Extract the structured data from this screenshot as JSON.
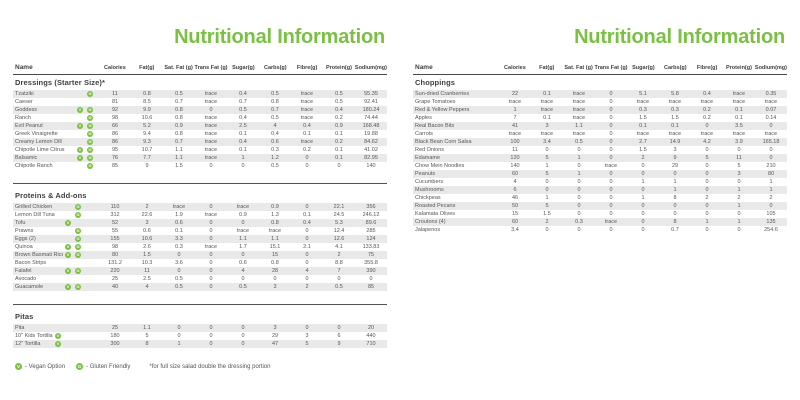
{
  "colors": {
    "accent_green": "#7ac143",
    "row_stripe": "#e9e9e9",
    "text_dark": "#3f4042",
    "text_body": "#55565a"
  },
  "columns": [
    "Name",
    "Calories",
    "Fat(g)",
    "Sat. Fat (g)",
    "Trans Fat (g)",
    "Sugar(g)",
    "Carbs(g)",
    "Fibre(g)",
    "Protein(g)",
    "Sodium(mg)"
  ],
  "legend": {
    "vegan_icon": "V",
    "vegan_label": "- Vegan Option",
    "gluten_icon": "G",
    "gluten_label": "- Gluten Friendly",
    "note": "*for full size salad double the dressing portion"
  },
  "pages": {
    "left": {
      "title": "Nutritional Information",
      "sections": [
        {
          "heading": "Dressings (Starter Size)*",
          "rows": [
            {
              "name": "Tzatziki",
              "vegan": false,
              "gluten": true,
              "values": [
                "11",
                "0.8",
                "0.5",
                "trace",
                "0.4",
                "0.5",
                "trace",
                "0.5",
                "55.35"
              ]
            },
            {
              "name": "Caeser",
              "vegan": false,
              "gluten": false,
              "values": [
                "81",
                "8.5",
                "0.7",
                "trace",
                "0.7",
                "0.8",
                "trace",
                "0.5",
                "92.41"
              ]
            },
            {
              "name": "Goddess",
              "vegan": true,
              "gluten": true,
              "values": [
                "92",
                "9.9",
                "0.8",
                "0",
                "0.5",
                "0.7",
                "trace",
                "0.4",
                "180.24"
              ]
            },
            {
              "name": "Ranch",
              "vegan": false,
              "gluten": true,
              "values": [
                "98",
                "10.6",
                "0.8",
                "trace",
                "0.4",
                "0.5",
                "trace",
                "0.2",
                "74.44"
              ]
            },
            {
              "name": "Evil Peanut",
              "vegan": true,
              "gluten": true,
              "values": [
                "66",
                "5.2",
                "0.9",
                "trace",
                "2.5",
                "4",
                "0.4",
                "0.9",
                "168.48"
              ]
            },
            {
              "name": "Greek Vinaigrette",
              "vegan": false,
              "gluten": true,
              "values": [
                "86",
                "9.4",
                "0.8",
                "trace",
                "0.1",
                "0.4",
                "0.1",
                "0.1",
                "19.88"
              ]
            },
            {
              "name": "Creamy Lemon Dill",
              "vegan": false,
              "gluten": true,
              "values": [
                "86",
                "9.3",
                "0.7",
                "trace",
                "0.4",
                "0.6",
                "trace",
                "0.2",
                "84.62"
              ]
            },
            {
              "name": "Chipotle Lime Citrus",
              "vegan": true,
              "gluten": true,
              "values": [
                "95",
                "10.7",
                "1.1",
                "trace",
                "0.1",
                "0.3",
                "0.2",
                "0.1",
                "41.02"
              ]
            },
            {
              "name": "Balsamic",
              "vegan": true,
              "gluten": true,
              "values": [
                "76",
                "7.7",
                "1.1",
                "trace",
                "1",
                "1.2",
                "0",
                "0.1",
                "82.95"
              ]
            },
            {
              "name": "Chipotle Ranch",
              "vegan": false,
              "gluten": true,
              "values": [
                "85",
                "9",
                "1.5",
                "0",
                "0",
                "0.5",
                "0",
                "0",
                "140"
              ]
            }
          ]
        },
        {
          "heading": "Proteins & Add-ons",
          "rows": [
            {
              "name": "Grilled Chicken",
              "vegan": false,
              "gluten": true,
              "values": [
                "110",
                "2",
                "trace",
                "0",
                "trace",
                "0.9",
                "0",
                "22.1",
                "356"
              ]
            },
            {
              "name": "Lemon Dill Tuna",
              "vegan": false,
              "gluten": true,
              "values": [
                "312",
                "22.6",
                "1.9",
                "trace",
                "0.9",
                "1.3",
                "0.1",
                "24.5",
                "246.12"
              ]
            },
            {
              "name": "Tofu",
              "vegan": true,
              "gluten": false,
              "values": [
                "52",
                "3",
                "0.6",
                "0",
                "0",
                "0.8",
                "0.4",
                "5.3",
                "89.6"
              ]
            },
            {
              "name": "Prawns",
              "vegan": false,
              "gluten": true,
              "values": [
                "55",
                "0.6",
                "0.1",
                "0",
                "trace",
                "trace",
                "0",
                "12.4",
                "285"
              ]
            },
            {
              "name": "Eggs (2)",
              "vegan": false,
              "gluten": true,
              "values": [
                "155",
                "10.6",
                "3.3",
                "0",
                "1.1",
                "1.1",
                "0",
                "12.6",
                "124"
              ]
            },
            {
              "name": "Quinoa",
              "vegan": true,
              "gluten": true,
              "values": [
                "98",
                "2.6",
                "0.3",
                "trace",
                "1.7",
                "15.1",
                "2.1",
                "4.1",
                "133.83"
              ]
            },
            {
              "name": "Brown Basmati Rice",
              "vegan": true,
              "gluten": true,
              "values": [
                "80",
                "1.5",
                "0",
                "0",
                "0",
                "15",
                "0",
                "2",
                "75"
              ]
            },
            {
              "name": "Bacon Strips",
              "vegan": false,
              "gluten": false,
              "values": [
                "131.2",
                "10.3",
                "3.6",
                "0",
                "0.6",
                "0.8",
                "0",
                "8.8",
                "355.8"
              ]
            },
            {
              "name": "Falafel",
              "vegan": true,
              "gluten": true,
              "values": [
                "220",
                "11",
                "0",
                "0",
                "4",
                "28",
                "4",
                "7",
                "390"
              ]
            },
            {
              "name": "Avocado",
              "vegan": false,
              "gluten": false,
              "values": [
                "25",
                "2.5",
                "0.5",
                "0",
                "0",
                "0",
                "0",
                "0",
                "0"
              ]
            },
            {
              "name": "Guacamole",
              "vegan": true,
              "gluten": true,
              "values": [
                "40",
                "4",
                "0.5",
                "0",
                "0.5",
                "3",
                "2",
                "0.5",
                "85"
              ]
            }
          ]
        },
        {
          "heading": "Pitas",
          "rows": [
            {
              "name": "Pita",
              "vegan": false,
              "gluten": false,
              "values": [
                "25",
                "1.1",
                "0",
                "0",
                "0",
                "3",
                "0",
                "0",
                "20"
              ]
            },
            {
              "name": "10\" Kids Tortilla",
              "vegan": true,
              "gluten": false,
              "values": [
                "180",
                "5",
                "0",
                "0",
                "0",
                "29",
                "3",
                "6",
                "440"
              ]
            },
            {
              "name": "12\" Tortilla",
              "vegan": true,
              "gluten": false,
              "values": [
                "300",
                "8",
                "1",
                "0",
                "0",
                "47",
                "5",
                "9",
                "710"
              ]
            }
          ]
        }
      ]
    },
    "right": {
      "title": "Nutritional Information",
      "sections": [
        {
          "heading": "Choppings",
          "rows": [
            {
              "name": "Sun-dried Cranberries",
              "values": [
                "22",
                "0.1",
                "trace",
                "0",
                "5.1",
                "5.8",
                "0.4",
                "trace",
                "0.35"
              ]
            },
            {
              "name": "Grape Tomatoes",
              "values": [
                "trace",
                "trace",
                "trace",
                "0",
                "trace",
                "trace",
                "trace",
                "trace",
                "trace"
              ]
            },
            {
              "name": "Red & Yellow Peppers",
              "values": [
                "1",
                "trace",
                "trace",
                "0",
                "0.3",
                "0.3",
                "0.2",
                "0.1",
                "0.07"
              ]
            },
            {
              "name": "Apples",
              "values": [
                "7",
                "0.1",
                "trace",
                "0",
                "1.5",
                "1.5",
                "0.2",
                "0.1",
                "0.14"
              ]
            },
            {
              "name": "Real Bacon Bits",
              "values": [
                "41",
                "3",
                "1.1",
                "0",
                "0.1",
                "0.1",
                "0",
                "3.5",
                "0"
              ]
            },
            {
              "name": "Carrots",
              "values": [
                "trace",
                "trace",
                "trace",
                "0",
                "trace",
                "trace",
                "trace",
                "trace",
                "trace"
              ]
            },
            {
              "name": "Black Bean Corn Salsa",
              "values": [
                "100",
                "3.4",
                "0.5",
                "0",
                "2.7",
                "14.9",
                "4.2",
                "3.9",
                "165.18"
              ]
            },
            {
              "name": "Red Onions",
              "values": [
                "11",
                "0",
                "0",
                "0",
                "1.5",
                "3",
                "0",
                "0",
                "0"
              ]
            },
            {
              "name": "Edamame",
              "values": [
                "120",
                "5",
                "1",
                "0",
                "2",
                "9",
                "5",
                "11",
                "0"
              ]
            },
            {
              "name": "Chow Mein Noodles",
              "values": [
                "140",
                "1",
                "0",
                "trace",
                "0",
                "29",
                "0",
                "5",
                "210"
              ]
            },
            {
              "name": "Peanuts",
              "values": [
                "60",
                "5",
                "1",
                "0",
                "0",
                "0",
                "0",
                "3",
                "80"
              ]
            },
            {
              "name": "Cucumbers",
              "values": [
                "4",
                "0",
                "0",
                "0",
                "1",
                "1",
                "0",
                "0",
                "1"
              ]
            },
            {
              "name": "Mushrooms",
              "values": [
                "6",
                "0",
                "0",
                "0",
                "0",
                "1",
                "0",
                "1",
                "1"
              ]
            },
            {
              "name": "Chickpeas",
              "values": [
                "46",
                "1",
                "0",
                "0",
                "1",
                "8",
                "2",
                "2",
                "2"
              ]
            },
            {
              "name": "Roasted Pecans",
              "values": [
                "50",
                "5",
                "0",
                "0",
                "0",
                "0",
                "0",
                "1",
                "0"
              ]
            },
            {
              "name": "Kalamata Olives",
              "values": [
                "15",
                "1.5",
                "0",
                "0",
                "0",
                "0",
                "0",
                "0",
                "105"
              ]
            },
            {
              "name": "Croutons (4)",
              "values": [
                "60",
                "2",
                "0.3",
                "trace",
                "0",
                "8",
                "1",
                "1",
                "135"
              ]
            },
            {
              "name": "Jalapenos",
              "values": [
                "3.4",
                "0",
                "0",
                "0",
                "0",
                "0.7",
                "0",
                "0",
                "254.6"
              ]
            }
          ]
        }
      ]
    }
  }
}
